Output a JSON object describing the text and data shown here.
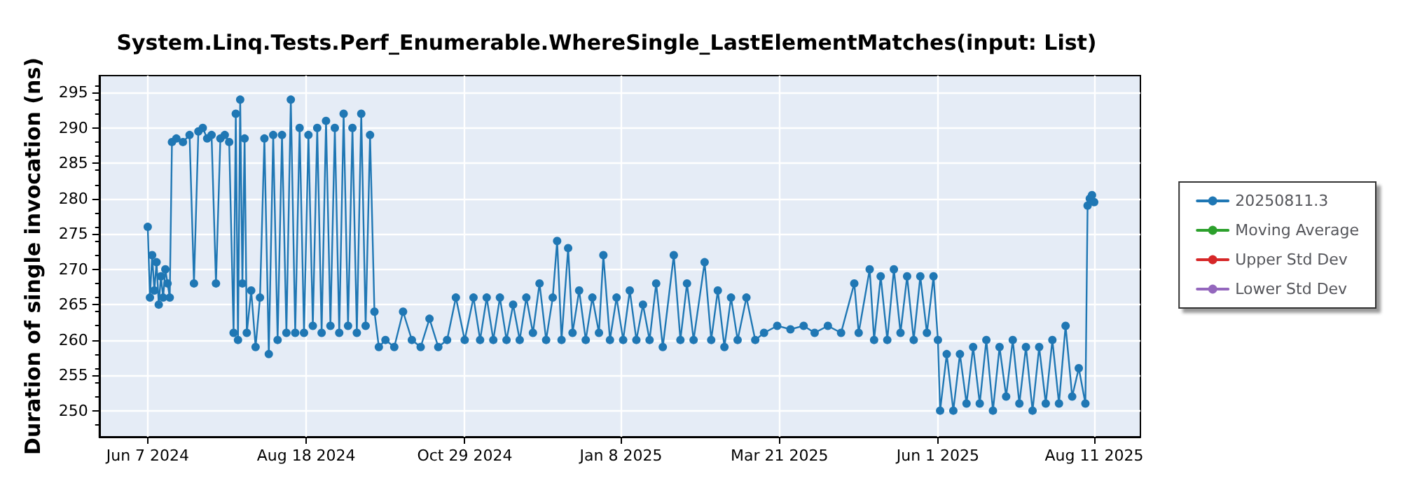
{
  "chart_data": {
    "type": "line",
    "title": "System.Linq.Tests.Perf_Enumerable.WhereSingle_LastElementMatches(input: List)",
    "ylabel": "Duration of single invocation (ns)",
    "x": [
      "2024-06-07",
      "2024-06-08",
      "2024-06-09",
      "2024-06-10",
      "2024-06-11",
      "2024-06-12",
      "2024-06-13",
      "2024-06-14",
      "2024-06-15",
      "2024-06-16",
      "2024-06-17",
      "2024-06-18",
      "2024-06-20",
      "2024-06-23",
      "2024-06-26",
      "2024-06-28",
      "2024-06-30",
      "2024-07-02",
      "2024-07-04",
      "2024-07-06",
      "2024-07-08",
      "2024-07-10",
      "2024-07-12",
      "2024-07-14",
      "2024-07-16",
      "2024-07-17",
      "2024-07-18",
      "2024-07-19",
      "2024-07-20",
      "2024-07-21",
      "2024-07-22",
      "2024-07-24",
      "2024-07-26",
      "2024-07-28",
      "2024-07-30",
      "2024-08-01",
      "2024-08-03",
      "2024-08-05",
      "2024-08-07",
      "2024-08-09",
      "2024-08-11",
      "2024-08-13",
      "2024-08-15",
      "2024-08-17",
      "2024-08-19",
      "2024-08-21",
      "2024-08-23",
      "2024-08-25",
      "2024-08-27",
      "2024-08-29",
      "2024-08-31",
      "2024-09-02",
      "2024-09-04",
      "2024-09-06",
      "2024-09-08",
      "2024-09-10",
      "2024-09-12",
      "2024-09-14",
      "2024-09-16",
      "2024-09-18",
      "2024-09-20",
      "2024-09-23",
      "2024-09-27",
      "2024-10-01",
      "2024-10-05",
      "2024-10-09",
      "2024-10-13",
      "2024-10-17",
      "2024-10-21",
      "2024-10-25",
      "2024-10-29",
      "2024-11-02",
      "2024-11-05",
      "2024-11-08",
      "2024-11-11",
      "2024-11-14",
      "2024-11-17",
      "2024-11-20",
      "2024-11-23",
      "2024-11-26",
      "2024-11-29",
      "2024-12-02",
      "2024-12-05",
      "2024-12-08",
      "2024-12-10",
      "2024-12-12",
      "2024-12-15",
      "2024-12-17",
      "2024-12-20",
      "2024-12-23",
      "2024-12-26",
      "2024-12-29",
      "2024-12-31",
      "2025-01-03",
      "2025-01-06",
      "2025-01-09",
      "2025-01-12",
      "2025-01-15",
      "2025-01-18",
      "2025-01-21",
      "2025-01-24",
      "2025-01-27",
      "2025-02-01",
      "2025-02-04",
      "2025-02-07",
      "2025-02-10",
      "2025-02-15",
      "2025-02-18",
      "2025-02-21",
      "2025-02-24",
      "2025-02-27",
      "2025-03-02",
      "2025-03-06",
      "2025-03-10",
      "2025-03-14",
      "2025-03-20",
      "2025-03-26",
      "2025-04-01",
      "2025-04-06",
      "2025-04-12",
      "2025-04-18",
      "2025-04-24",
      "2025-04-26",
      "2025-05-01",
      "2025-05-03",
      "2025-05-06",
      "2025-05-09",
      "2025-05-12",
      "2025-05-15",
      "2025-05-18",
      "2025-05-21",
      "2025-05-24",
      "2025-05-27",
      "2025-05-30",
      "2025-06-01",
      "2025-06-02",
      "2025-06-05",
      "2025-06-08",
      "2025-06-11",
      "2025-06-14",
      "2025-06-17",
      "2025-06-20",
      "2025-06-23",
      "2025-06-26",
      "2025-06-29",
      "2025-07-02",
      "2025-07-05",
      "2025-07-08",
      "2025-07-11",
      "2025-07-14",
      "2025-07-17",
      "2025-07-20",
      "2025-07-23",
      "2025-07-26",
      "2025-07-29",
      "2025-08-01",
      "2025-08-04",
      "2025-08-07",
      "2025-08-08",
      "2025-08-09",
      "2025-08-10",
      "2025-08-11"
    ],
    "series": [
      {
        "name": "20250811.3",
        "color": "#1f77b4",
        "values": [
          276,
          266,
          272,
          267,
          271,
          265,
          269,
          266,
          270,
          268,
          266,
          288,
          288.5,
          288,
          289,
          268,
          289.5,
          290,
          288.5,
          289,
          268,
          288.5,
          289,
          288,
          261,
          292,
          260,
          294,
          268,
          288.5,
          261,
          267,
          259,
          266,
          288.5,
          258,
          289,
          260,
          289,
          261,
          294,
          261,
          290,
          261,
          289,
          262,
          290,
          261,
          291,
          262,
          290,
          261,
          292,
          262,
          290,
          261,
          292,
          262,
          289,
          264,
          259,
          260,
          259,
          264,
          260,
          259,
          263,
          259,
          260,
          266,
          260,
          266,
          260,
          266,
          260,
          266,
          260,
          265,
          260,
          266,
          261,
          268,
          260,
          266,
          274,
          260,
          273,
          261,
          267,
          260,
          266,
          261,
          272,
          260,
          266,
          260,
          267,
          260,
          265,
          260,
          268,
          259,
          272,
          260,
          268,
          260,
          271,
          260,
          267,
          259,
          266,
          260,
          266,
          260,
          261,
          262,
          261.5,
          262,
          261,
          262,
          261,
          268,
          261,
          270,
          260,
          269,
          260,
          270,
          261,
          269,
          260,
          269,
          261,
          269,
          260,
          250,
          258,
          250,
          258,
          251,
          259,
          251,
          260,
          250,
          259,
          252,
          260,
          251,
          259,
          250,
          259,
          251,
          260,
          251,
          262,
          252,
          256,
          251,
          279,
          280,
          280.5,
          279.5
        ]
      },
      {
        "name": "Moving Average",
        "color": "#2ca02c",
        "values": [
          null,
          null,
          null,
          null,
          null,
          null,
          null,
          null,
          null,
          null,
          null,
          null,
          null,
          null,
          null,
          null,
          null,
          null,
          null,
          null,
          null,
          null,
          null,
          null,
          null,
          null,
          null,
          null,
          null,
          null,
          null,
          null,
          null,
          null,
          null,
          null,
          null,
          null,
          null,
          null,
          null,
          null,
          null,
          null,
          null,
          null,
          null,
          null,
          null,
          null,
          null,
          null,
          null,
          null,
          null,
          null,
          null,
          null,
          null,
          null,
          null,
          null,
          null,
          null,
          null,
          null,
          null,
          null,
          null,
          null,
          null,
          null,
          null,
          null,
          null,
          null,
          null,
          null,
          null,
          null,
          null,
          null,
          null,
          null,
          null,
          null,
          null,
          null,
          null,
          null,
          null,
          null,
          null,
          null,
          null,
          null,
          null,
          null,
          null,
          null,
          null,
          null,
          null,
          null,
          null,
          null,
          null,
          null,
          null,
          null,
          null,
          null,
          null,
          null,
          null,
          null,
          null,
          null,
          null,
          null,
          null,
          null,
          null,
          null,
          null,
          null,
          null,
          null,
          null,
          null,
          null,
          null,
          null,
          null,
          null,
          null,
          null,
          null,
          null,
          null,
          null,
          null,
          null,
          null,
          null,
          null,
          null,
          null,
          null,
          null,
          null,
          null,
          null,
          null,
          null,
          null,
          null,
          null,
          null,
          null,
          null,
          null
        ]
      },
      {
        "name": "Upper Std Dev",
        "color": "#d62728",
        "values": [
          null,
          null,
          null,
          null,
          null,
          null,
          null,
          null,
          null,
          null,
          null,
          null,
          null,
          null,
          null,
          null,
          null,
          null,
          null,
          null,
          null,
          null,
          null,
          null,
          null,
          null,
          null,
          null,
          null,
          null,
          null,
          null,
          null,
          null,
          null,
          null,
          null,
          null,
          null,
          null,
          null,
          null,
          null,
          null,
          null,
          null,
          null,
          null,
          null,
          null,
          null,
          null,
          null,
          null,
          null,
          null,
          null,
          null,
          null,
          null,
          null,
          null,
          null,
          null,
          null,
          null,
          null,
          null,
          null,
          null,
          null,
          null,
          null,
          null,
          null,
          null,
          null,
          null,
          null,
          null,
          null,
          null,
          null,
          null,
          null,
          null,
          null,
          null,
          null,
          null,
          null,
          null,
          null,
          null,
          null,
          null,
          null,
          null,
          null,
          null,
          null,
          null,
          null,
          null,
          null,
          null,
          null,
          null,
          null,
          null,
          null,
          null,
          null,
          null,
          null,
          null,
          null,
          null,
          null,
          null,
          null,
          null,
          null,
          null,
          null,
          null,
          null,
          null,
          null,
          null,
          null,
          null,
          null,
          null,
          null,
          null,
          null,
          null,
          null,
          null,
          null,
          null,
          null,
          null,
          null,
          null,
          null,
          null,
          null,
          null,
          null,
          null,
          null,
          null,
          null,
          null,
          null,
          null,
          null,
          null,
          null,
          null
        ]
      },
      {
        "name": "Lower Std Dev",
        "color": "#9467bd",
        "values": [
          null,
          null,
          null,
          null,
          null,
          null,
          null,
          null,
          null,
          null,
          null,
          null,
          null,
          null,
          null,
          null,
          null,
          null,
          null,
          null,
          null,
          null,
          null,
          null,
          null,
          null,
          null,
          null,
          null,
          null,
          null,
          null,
          null,
          null,
          null,
          null,
          null,
          null,
          null,
          null,
          null,
          null,
          null,
          null,
          null,
          null,
          null,
          null,
          null,
          null,
          null,
          null,
          null,
          null,
          null,
          null,
          null,
          null,
          null,
          null,
          null,
          null,
          null,
          null,
          null,
          null,
          null,
          null,
          null,
          null,
          null,
          null,
          null,
          null,
          null,
          null,
          null,
          null,
          null,
          null,
          null,
          null,
          null,
          null,
          null,
          null,
          null,
          null,
          null,
          null,
          null,
          null,
          null,
          null,
          null,
          null,
          null,
          null,
          null,
          null,
          null,
          null,
          null,
          null,
          null,
          null,
          null,
          null,
          null,
          null,
          null,
          null,
          null,
          null,
          null,
          null,
          null,
          null,
          null,
          null,
          null,
          null,
          null,
          null,
          null,
          null,
          null,
          null,
          null,
          null,
          null,
          null,
          null,
          null,
          null,
          null,
          null,
          null,
          null,
          null,
          null,
          null,
          null,
          null,
          null,
          null,
          null,
          null,
          null,
          null,
          null,
          null,
          null,
          null,
          null,
          null,
          null,
          null,
          null,
          null,
          null,
          null
        ]
      }
    ],
    "xlim": [
      "2024-05-16",
      "2025-09-01"
    ],
    "xticks": [
      {
        "value": "2024-06-07",
        "label": "Jun 7 2024"
      },
      {
        "value": "2024-08-18",
        "label": "Aug 18 2024"
      },
      {
        "value": "2024-10-29",
        "label": "Oct 29 2024"
      },
      {
        "value": "2025-01-08",
        "label": "Jan 8 2025"
      },
      {
        "value": "2025-03-21",
        "label": "Mar 21 2025"
      },
      {
        "value": "2025-06-01",
        "label": "Jun 1 2025"
      },
      {
        "value": "2025-08-11",
        "label": "Aug 11 2025"
      }
    ],
    "ylim": [
      246.3,
      297.4
    ],
    "yticks": [
      250,
      255,
      260,
      265,
      270,
      275,
      280,
      285,
      290,
      295
    ],
    "grid": true,
    "legend": "right",
    "marker": "circle",
    "line_style": "solid"
  }
}
